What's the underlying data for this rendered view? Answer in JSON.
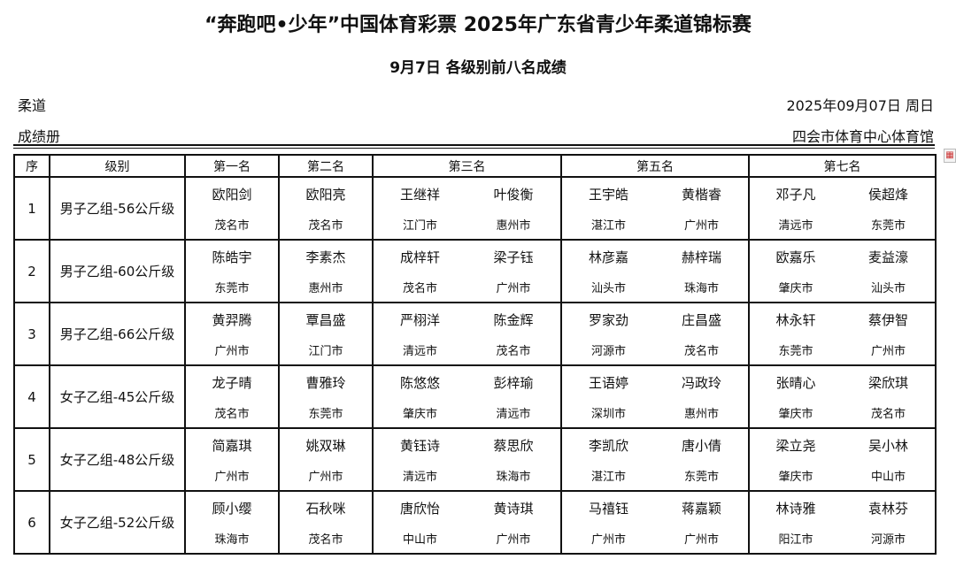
{
  "header": {
    "title": "“奔跑吧•少年”中国体育彩票 2025年广东省青少年柔道锦标赛",
    "subtitle": "9月7日 各级别前八名成绩",
    "sport": "柔道",
    "book": "成绩册",
    "date": "2025年09月07日 周日",
    "venue": "四会市体育中心体育馆"
  },
  "table": {
    "headers": [
      "序",
      "级别",
      "第一名",
      "第二名",
      "第三名",
      "第五名",
      "第七名"
    ],
    "rows": [
      {
        "no": "1",
        "category": "男子乙组-56公斤级",
        "results": [
          [
            "欧阳剑",
            "茂名市"
          ],
          [
            "欧阳亮",
            "茂名市"
          ],
          [
            "王继祥",
            "江门市"
          ],
          [
            "叶俊衡",
            "惠州市"
          ],
          [
            "王宇皓",
            "湛江市"
          ],
          [
            "黄楷睿",
            "广州市"
          ],
          [
            "邓子凡",
            "清远市"
          ],
          [
            "侯超烽",
            "东莞市"
          ]
        ]
      },
      {
        "no": "2",
        "category": "男子乙组-60公斤级",
        "results": [
          [
            "陈皓宇",
            "东莞市"
          ],
          [
            "李素杰",
            "惠州市"
          ],
          [
            "成梓轩",
            "茂名市"
          ],
          [
            "梁子钰",
            "广州市"
          ],
          [
            "林彦嘉",
            "汕头市"
          ],
          [
            "赫梓瑞",
            "珠海市"
          ],
          [
            "欧嘉乐",
            "肇庆市"
          ],
          [
            "麦益濠",
            "汕头市"
          ]
        ]
      },
      {
        "no": "3",
        "category": "男子乙组-66公斤级",
        "results": [
          [
            "黄羿腾",
            "广州市"
          ],
          [
            "覃昌盛",
            "江门市"
          ],
          [
            "严栩洋",
            "清远市"
          ],
          [
            "陈金辉",
            "茂名市"
          ],
          [
            "罗家劲",
            "河源市"
          ],
          [
            "庄昌盛",
            "茂名市"
          ],
          [
            "林永轩",
            "东莞市"
          ],
          [
            "蔡伊智",
            "广州市"
          ]
        ]
      },
      {
        "no": "4",
        "category": "女子乙组-45公斤级",
        "results": [
          [
            "龙子晴",
            "茂名市"
          ],
          [
            "曹雅玲",
            "东莞市"
          ],
          [
            "陈悠悠",
            "肇庆市"
          ],
          [
            "彭梓瑜",
            "清远市"
          ],
          [
            "王语婷",
            "深圳市"
          ],
          [
            "冯政玲",
            "惠州市"
          ],
          [
            "张晴心",
            "肇庆市"
          ],
          [
            "梁欣琪",
            "茂名市"
          ]
        ]
      },
      {
        "no": "5",
        "category": "女子乙组-48公斤级",
        "results": [
          [
            "简嘉琪",
            "广州市"
          ],
          [
            "姚双琳",
            "广州市"
          ],
          [
            "黄钰诗",
            "清远市"
          ],
          [
            "蔡思欣",
            "珠海市"
          ],
          [
            "李凯欣",
            "湛江市"
          ],
          [
            "唐小倩",
            "东莞市"
          ],
          [
            "梁立尧",
            "肇庆市"
          ],
          [
            "吴小林",
            "中山市"
          ]
        ]
      },
      {
        "no": "6",
        "category": "女子乙组-52公斤级",
        "results": [
          [
            "顾小缨",
            "珠海市"
          ],
          [
            "石秋咪",
            "茂名市"
          ],
          [
            "唐欣怡",
            "中山市"
          ],
          [
            "黄诗琪",
            "广州市"
          ],
          [
            "马禧钰",
            "广州市"
          ],
          [
            "蒋嘉颖",
            "广州市"
          ],
          [
            "林诗雅",
            "阳江市"
          ],
          [
            "袁林芬",
            "河源市"
          ]
        ]
      }
    ]
  },
  "icons": {
    "side": "calculator-icon"
  }
}
